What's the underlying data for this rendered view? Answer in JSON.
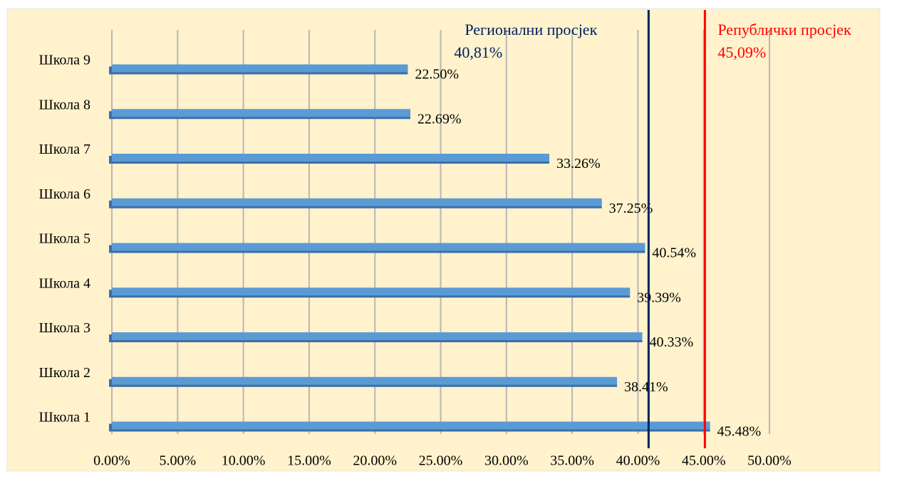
{
  "chart_data": {
    "type": "bar",
    "orientation": "horizontal",
    "categories": [
      "Школа 1",
      "Школа 2",
      "Школа 3",
      "Школа 4",
      "Школа 5",
      "Школа 6",
      "Школа 7",
      "Школа 8",
      "Школа 9"
    ],
    "values": [
      45.48,
      38.41,
      40.33,
      39.39,
      40.54,
      37.25,
      33.26,
      22.69,
      22.5
    ],
    "value_labels": [
      "45.48%",
      "38.41%",
      "40.33%",
      "39.39%",
      "40.54%",
      "37.25%",
      "33.26%",
      "22.69%",
      "22.50%"
    ],
    "color": "#5b9bd5",
    "xlim": [
      0,
      50
    ],
    "xticks": [
      {
        "value": 0,
        "label": "0.00%"
      },
      {
        "value": 5,
        "label": "5.00%"
      },
      {
        "value": 10,
        "label": "10.00%"
      },
      {
        "value": 15,
        "label": "15.00%"
      },
      {
        "value": 20,
        "label": "20.00%"
      },
      {
        "value": 25,
        "label": "25.00%"
      },
      {
        "value": 30,
        "label": "30.00%"
      },
      {
        "value": 35,
        "label": "35.00%"
      },
      {
        "value": 40,
        "label": "40.00%"
      },
      {
        "value": 45,
        "label": "45.00%"
      },
      {
        "value": 50,
        "label": "50.00%"
      }
    ],
    "grid": true,
    "reference_lines": [
      {
        "label": "Регионални просјек",
        "value": 40.81,
        "value_label": "40,81%",
        "color": "#002060"
      },
      {
        "label": "Републички просјек",
        "value": 45.09,
        "value_label": "45,09%",
        "color": "#ff0000"
      }
    ]
  }
}
